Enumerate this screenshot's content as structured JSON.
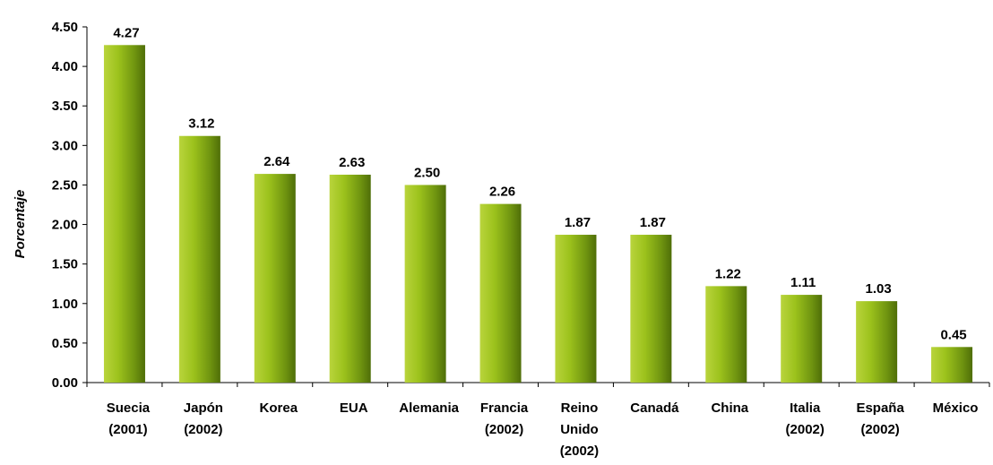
{
  "chart_data": {
    "type": "bar",
    "ylabel": "Porcentaje",
    "xlabel": "",
    "title": "",
    "ylim": [
      0,
      4.5
    ],
    "yticks": [
      "0.00",
      "0.50",
      "1.00",
      "1.50",
      "2.00",
      "2.50",
      "3.00",
      "3.50",
      "4.00",
      "4.50"
    ],
    "grid": false,
    "legend": "none",
    "bar_color": "#7a9e12",
    "categories": [
      [
        "Suecia",
        "(2001)"
      ],
      [
        "Japón",
        "(2002)"
      ],
      [
        "Korea"
      ],
      [
        "EUA"
      ],
      [
        "Alemania"
      ],
      [
        "Francia",
        "(2002)"
      ],
      [
        "Reino",
        "Unido",
        "(2002)"
      ],
      [
        "Canadá"
      ],
      [
        "China"
      ],
      [
        "Italia",
        "(2002)"
      ],
      [
        "España",
        "(2002)"
      ],
      [
        "México"
      ]
    ],
    "values": [
      4.27,
      3.12,
      2.64,
      2.63,
      2.5,
      2.26,
      1.87,
      1.87,
      1.22,
      1.11,
      1.03,
      0.45
    ],
    "value_labels": [
      "4.27",
      "3.12",
      "2.64",
      "2.63",
      "2.50",
      "2.26",
      "1.87",
      "1.87",
      "1.22",
      "1.11",
      "1.03",
      "0.45"
    ]
  }
}
